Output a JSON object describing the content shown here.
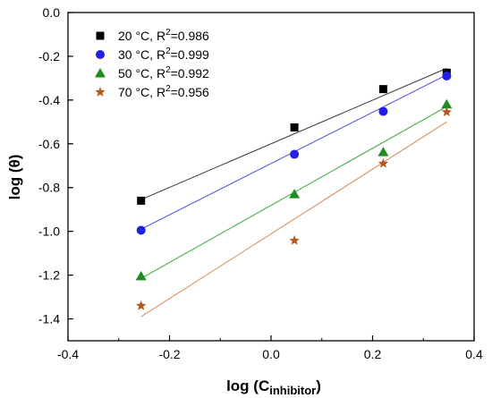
{
  "chart_data": {
    "type": "scatter",
    "xlabel": "log (C",
    "xlabel_sub": "inhibitor",
    "xlabel_end": ")",
    "ylabel": "log (θ)",
    "xlim": [
      -0.4,
      0.4
    ],
    "ylim": [
      -1.5,
      0.0
    ],
    "xticks": [
      -0.4,
      -0.2,
      0.0,
      0.2,
      0.4
    ],
    "xtick_labels": [
      "-0.4",
      "-0.2",
      "0.0",
      "0.2",
      "0.4"
    ],
    "yticks": [
      0.0,
      -0.2,
      -0.4,
      -0.6,
      -0.8,
      -1.0,
      -1.2,
      -1.4
    ],
    "ytick_labels": [
      "0.0",
      "-0.2",
      "-0.4",
      "-0.6",
      "-0.8",
      "-1.0",
      "-1.2",
      "-1.4"
    ],
    "grid": false,
    "legend_position": "top-left",
    "series": [
      {
        "name_prefix": "20 °C, R",
        "name_sup": "2",
        "name_suffix": "=0.986",
        "marker": "square",
        "color": "#000000",
        "line_color": "#333333",
        "x": [
          -0.256,
          0.046,
          0.221,
          0.346
        ],
        "y": [
          -0.86,
          -0.525,
          -0.35,
          -0.275
        ],
        "fit": {
          "x": [
            -0.256,
            0.346
          ],
          "y": [
            -0.855,
            -0.255
          ]
        }
      },
      {
        "name_prefix": "30 °C, R",
        "name_sup": "2",
        "name_suffix": "=0.999",
        "marker": "circle",
        "color": "#1f1fe6",
        "line_color": "#4b4be0",
        "x": [
          -0.256,
          0.046,
          0.221,
          0.346
        ],
        "y": [
          -0.995,
          -0.648,
          -0.452,
          -0.29
        ],
        "fit": {
          "x": [
            -0.256,
            0.346
          ],
          "y": [
            -0.99,
            -0.285
          ]
        }
      },
      {
        "name_prefix": "50 °C, R",
        "name_sup": "2",
        "name_suffix": "=0.992",
        "marker": "triangle",
        "color": "#1e8c1e",
        "line_color": "#3aa63a",
        "x": [
          -0.256,
          0.046,
          0.221,
          0.346
        ],
        "y": [
          -1.205,
          -0.83,
          -0.638,
          -0.42
        ],
        "fit": {
          "x": [
            -0.256,
            0.346
          ],
          "y": [
            -1.215,
            -0.43
          ]
        }
      },
      {
        "name_prefix": "70 °C, R",
        "name_sup": "2",
        "name_suffix": "=0.956",
        "marker": "star",
        "color": "#b35a1f",
        "line_color": "#d48a5a",
        "x": [
          -0.256,
          0.046,
          0.221,
          0.346
        ],
        "y": [
          -1.34,
          -1.042,
          -0.69,
          -0.455
        ],
        "fit": {
          "x": [
            -0.256,
            0.346
          ],
          "y": [
            -1.39,
            -0.5
          ]
        }
      }
    ]
  }
}
